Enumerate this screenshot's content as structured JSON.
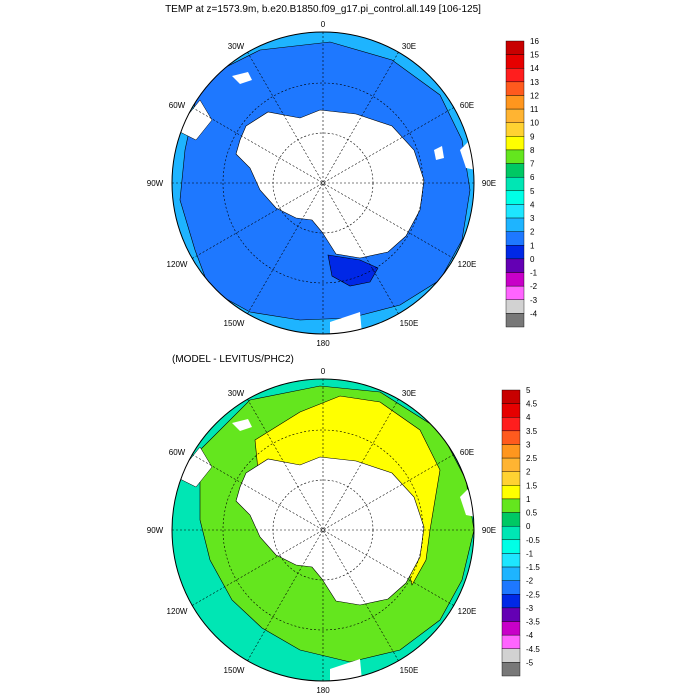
{
  "panels": [
    {
      "title": "TEMP at z=1573.9m, b.e20.B1850.f09_g17.pi_control.all.149 [106-125]",
      "lon_labels": {
        "top": "0",
        "ne": "30E",
        "e1": "60E",
        "e": "90E",
        "se1": "120E",
        "se": "150E",
        "bottom": "180",
        "sw": "150W",
        "sw1": "120W",
        "w": "90W",
        "nw1": "60W",
        "nw": "30W"
      },
      "colorbar": {
        "labels": [
          "16",
          "15",
          "14",
          "13",
          "12",
          "11",
          "10",
          "9",
          "8",
          "7",
          "6",
          "5",
          "4",
          "3",
          "2",
          "1",
          "0",
          "-1",
          "-2",
          "-3",
          "-4"
        ],
        "colors": [
          "#c80000",
          "#e60000",
          "#ff1e1e",
          "#ff5a1e",
          "#ff961e",
          "#ffb432",
          "#ffd232",
          "#ffff00",
          "#64e61e",
          "#00c864",
          "#00e6b4",
          "#00ffe6",
          "#1ee6ff",
          "#1eb4ff",
          "#1e78ff",
          "#0028e6",
          "#6400b4",
          "#c800c8",
          "#ff64ff",
          "#d2d2d2",
          "#787878"
        ]
      },
      "colors": {
        "ocean": "#1e78ff",
        "ocean_light": "#1eb4ff",
        "cold": "#0028e6",
        "land": "#ffffff"
      }
    },
    {
      "title": "(MODEL - LEVITUS/PHC2)",
      "lon_labels": {
        "top": "0",
        "ne": "30E",
        "e1": "60E",
        "e": "90E",
        "se1": "120E",
        "se": "150E",
        "bottom": "180",
        "sw": "150W",
        "sw1": "120W",
        "w": "90W",
        "nw1": "60W",
        "nw": "30W"
      },
      "colorbar": {
        "labels": [
          "5",
          "4.5",
          "4",
          "3.5",
          "3",
          "2.5",
          "2",
          "1.5",
          "1",
          "0.5",
          "0",
          "-0.5",
          "-1",
          "-1.5",
          "-2",
          "-2.5",
          "-3",
          "-3.5",
          "-4",
          "-4.5",
          "-5"
        ],
        "colors": [
          "#c80000",
          "#e60000",
          "#ff1e1e",
          "#ff5a1e",
          "#ff961e",
          "#ffb432",
          "#ffd232",
          "#ffff00",
          "#64e61e",
          "#00c864",
          "#00e6b4",
          "#00ffe6",
          "#1ee6ff",
          "#1eb4ff",
          "#1e78ff",
          "#0028e6",
          "#6400b4",
          "#c800c8",
          "#ff64ff",
          "#d2d2d2",
          "#787878"
        ]
      },
      "colors": {
        "outer": "#00e6b4",
        "mid": "#64e61e",
        "warm": "#ffff00",
        "land": "#ffffff"
      }
    }
  ]
}
